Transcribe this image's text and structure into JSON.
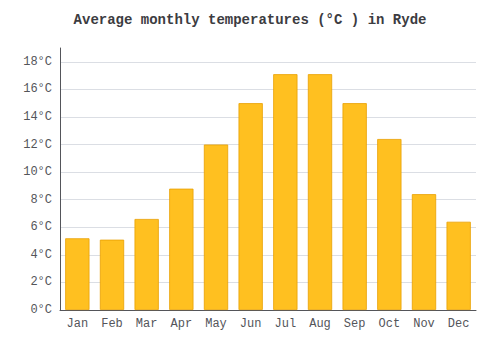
{
  "chart_data": {
    "type": "bar",
    "title": "Average monthly temperatures (°C ) in Ryde",
    "categories": [
      "Jan",
      "Feb",
      "Mar",
      "Apr",
      "May",
      "Jun",
      "Jul",
      "Aug",
      "Sep",
      "Oct",
      "Nov",
      "Dec"
    ],
    "values": [
      5.2,
      5.1,
      6.6,
      8.8,
      12.0,
      15.0,
      17.1,
      17.1,
      15.0,
      12.4,
      8.4,
      6.4
    ],
    "color": "#FFC020",
    "ylim": [
      0,
      19
    ],
    "yticks": [
      {
        "value": 0,
        "label": "0°C"
      },
      {
        "value": 2,
        "label": "2°C"
      },
      {
        "value": 4,
        "label": "4°C"
      },
      {
        "value": 6,
        "label": "6°C"
      },
      {
        "value": 8,
        "label": "8°C"
      },
      {
        "value": 10,
        "label": "10°C"
      },
      {
        "value": 12,
        "label": "12°C"
      },
      {
        "value": 14,
        "label": "14°C"
      },
      {
        "value": 16,
        "label": "16°C"
      },
      {
        "value": 18,
        "label": "18°C"
      }
    ],
    "grid": true
  }
}
